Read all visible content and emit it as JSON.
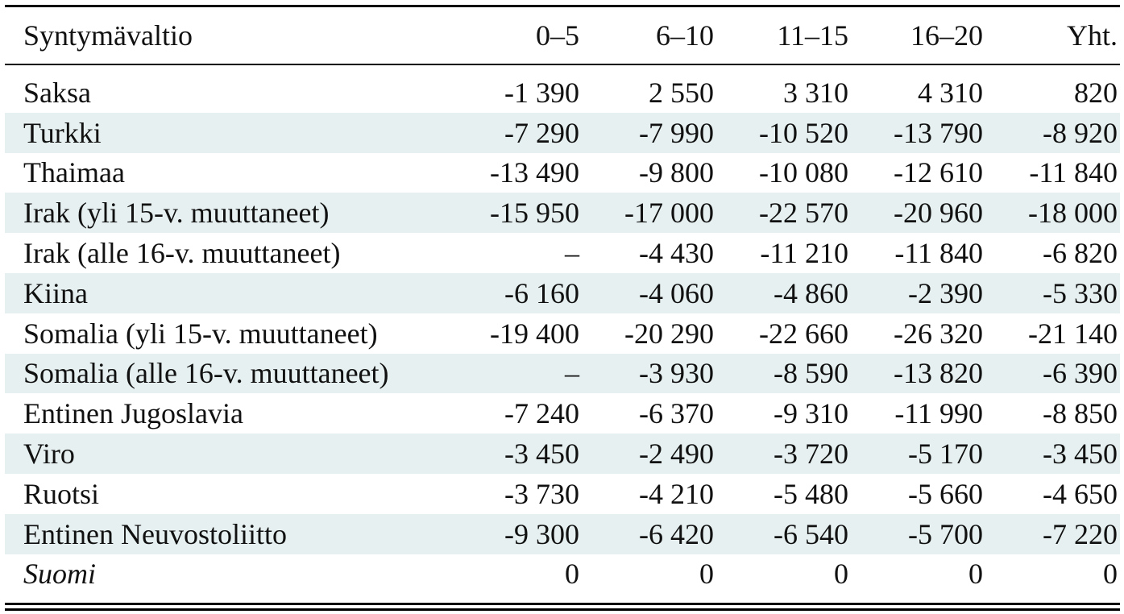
{
  "table": {
    "headers": [
      "Syntymävaltio",
      "0–5",
      "6–10",
      "11–15",
      "16–20",
      "Yht."
    ],
    "rows": [
      {
        "name": "Saksa",
        "values": [
          "-1 390",
          "2 550",
          "3 310",
          "4 310",
          "820"
        ],
        "shaded": false,
        "italic": false
      },
      {
        "name": "Turkki",
        "values": [
          "-7 290",
          "-7 990",
          "-10 520",
          "-13 790",
          "-8 920"
        ],
        "shaded": true,
        "italic": false
      },
      {
        "name": "Thaimaa",
        "values": [
          "-13 490",
          "-9 800",
          "-10 080",
          "-12 610",
          "-11 840"
        ],
        "shaded": false,
        "italic": false
      },
      {
        "name": "Irak (yli 15-v. muuttaneet)",
        "values": [
          "-15 950",
          "-17 000",
          "-22 570",
          "-20 960",
          "-18 000"
        ],
        "shaded": true,
        "italic": false
      },
      {
        "name": "Irak (alle 16-v. muuttaneet)",
        "values": [
          "–",
          "-4 430",
          "-11 210",
          "-11 840",
          "-6 820"
        ],
        "shaded": false,
        "italic": false
      },
      {
        "name": "Kiina",
        "values": [
          "-6 160",
          "-4 060",
          "-4 860",
          "-2 390",
          "-5 330"
        ],
        "shaded": true,
        "italic": false
      },
      {
        "name": "Somalia (yli 15-v. muuttaneet)",
        "values": [
          "-19 400",
          "-20 290",
          "-22 660",
          "-26 320",
          "-21 140"
        ],
        "shaded": false,
        "italic": false
      },
      {
        "name": "Somalia (alle 16-v. muuttaneet)",
        "values": [
          "–",
          "-3 930",
          "-8 590",
          "-13 820",
          "-6 390"
        ],
        "shaded": true,
        "italic": false
      },
      {
        "name": "Entinen Jugoslavia",
        "values": [
          "-7 240",
          "-6 370",
          "-9 310",
          "-11 990",
          "-8 850"
        ],
        "shaded": false,
        "italic": false
      },
      {
        "name": "Viro",
        "values": [
          "-3 450",
          "-2 490",
          "-3 720",
          "-5 170",
          "-3 450"
        ],
        "shaded": true,
        "italic": false
      },
      {
        "name": "Ruotsi",
        "values": [
          "-3 730",
          "-4 210",
          "-5 480",
          "-5 660",
          "-4 650"
        ],
        "shaded": false,
        "italic": false
      },
      {
        "name": "Entinen Neuvostoliitto",
        "values": [
          "-9 300",
          "-6 420",
          "-6 540",
          "-5 700",
          "-7 220"
        ],
        "shaded": true,
        "italic": false
      },
      {
        "name": "Suomi",
        "values": [
          "0",
          "0",
          "0",
          "0",
          "0"
        ],
        "shaded": false,
        "italic": true
      }
    ],
    "colors": {
      "shade": "#e6f0f0",
      "rule": "#000000",
      "text": "#111111"
    }
  }
}
